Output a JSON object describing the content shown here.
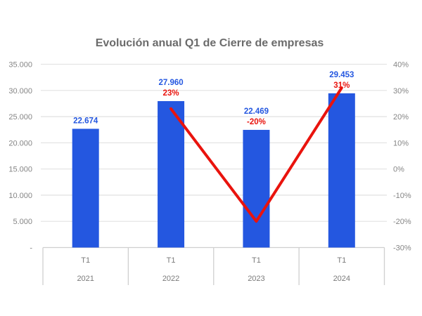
{
  "chart_data": {
    "type": "bar",
    "combo": "bar + line",
    "title": "Evolución anual Q1 de Cierre de empresas",
    "categories": [
      "2021",
      "2022",
      "2023",
      "2024"
    ],
    "category_top_labels": [
      "T1",
      "T1",
      "T1",
      "T1"
    ],
    "series": [
      {
        "name": "cierres-bar-series",
        "type": "bar",
        "values": [
          22674,
          27960,
          22469,
          29453
        ],
        "labels": [
          "22.674",
          "27.960",
          "22.469",
          "29.453"
        ],
        "color": "#2457E0"
      },
      {
        "name": "variacion-line-series",
        "type": "line",
        "values": [
          null,
          23,
          -20,
          31
        ],
        "labels": [
          null,
          "23%",
          "-20%",
          "31%"
        ],
        "color": "#E9130D"
      }
    ],
    "left_axis": {
      "min": 0,
      "max": 35000,
      "ticks": [
        "35.000",
        "30.000",
        "25.000",
        "20.000",
        "15.000",
        "10.000",
        "5.000",
        "-"
      ]
    },
    "right_axis": {
      "min": -30,
      "max": 40,
      "ticks": [
        "40%",
        "30%",
        "20%",
        "10%",
        "0%",
        "-10%",
        "-20%",
        "-30%"
      ]
    },
    "grid": true,
    "legend": "none",
    "colors": {
      "bar": "#2457E0",
      "line": "#E9130D",
      "title_text": "#6B6B6B",
      "axis_text": "#858585",
      "category_text": "#7A7A7A",
      "gridline": "#E4E4E4",
      "band_border": "#CFCFCF",
      "background": "#FFFFFF"
    }
  }
}
